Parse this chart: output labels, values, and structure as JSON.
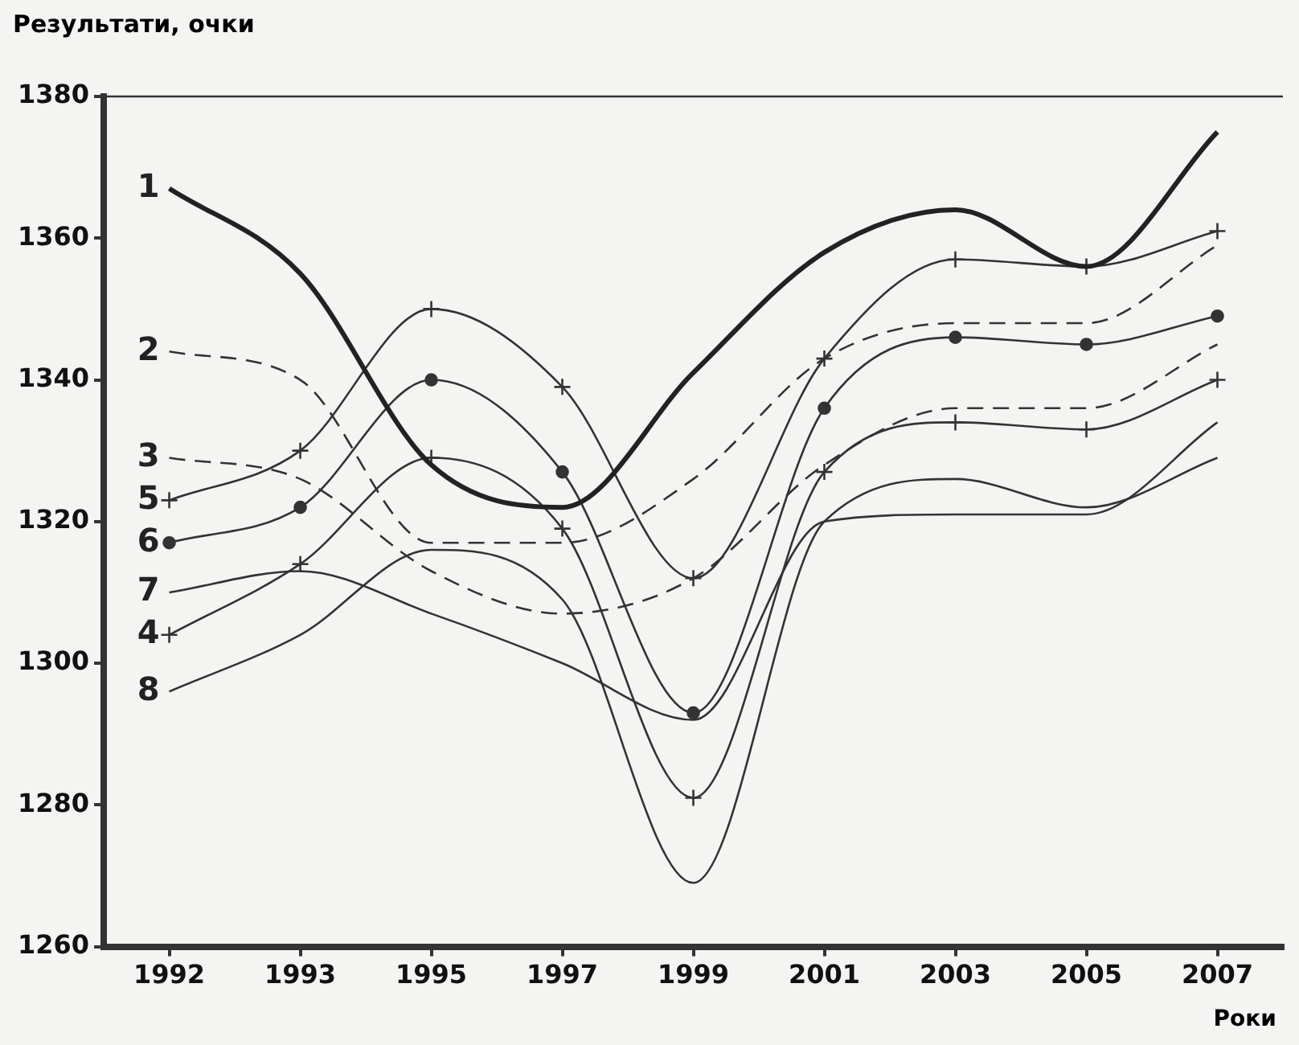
{
  "chart_data": {
    "type": "line",
    "ylabel": "Результати, очки",
    "xlabel": "Роки",
    "categories": [
      "1992",
      "1993",
      "1995",
      "1997",
      "1999",
      "2001",
      "2003",
      "2005",
      "2007"
    ],
    "ylim": [
      1260,
      1380
    ],
    "yticks": [
      1260,
      1280,
      1300,
      1320,
      1340,
      1360,
      1380
    ],
    "grid": false,
    "legend": false,
    "series": [
      {
        "name": "1",
        "color": "#222222",
        "marker": "none",
        "line_style": "solid",
        "values": [
          1367,
          1355,
          1328,
          1322,
          1341,
          1358,
          1364,
          1356,
          1375
        ]
      },
      {
        "name": "2",
        "color": "#333333",
        "marker": "none",
        "line_style": "dashed",
        "values": [
          1344,
          1340,
          1317,
          1317,
          1326,
          1343,
          1348,
          1348,
          1359
        ]
      },
      {
        "name": "3",
        "color": "#333333",
        "marker": "none",
        "line_style": "dashed",
        "values": [
          1329,
          1326,
          1313,
          1307,
          1312,
          1328,
          1336,
          1336,
          1345
        ]
      },
      {
        "name": "4",
        "color": "#333333",
        "marker": "cross",
        "line_style": "solid",
        "values": [
          1304,
          1314,
          1329,
          1319,
          1281,
          1327,
          1334,
          1333,
          1340
        ]
      },
      {
        "name": "5",
        "color": "#333333",
        "marker": "cross",
        "line_style": "solid",
        "values": [
          1323,
          1330,
          1350,
          1339,
          1312,
          1343,
          1357,
          1356,
          1361
        ]
      },
      {
        "name": "6",
        "color": "#333333",
        "marker": "circle",
        "line_style": "solid",
        "values": [
          1317,
          1322,
          1340,
          1327,
          1293,
          1336,
          1346,
          1345,
          1349
        ]
      },
      {
        "name": "7",
        "color": "#333333",
        "marker": "none",
        "line_style": "solid",
        "values": [
          1310,
          1313,
          1307,
          1300,
          1292,
          1320,
          1321,
          1321,
          1334
        ]
      },
      {
        "name": "8",
        "color": "#333333",
        "marker": "none",
        "line_style": "solid",
        "values": [
          1296,
          1304,
          1316,
          1309,
          1269,
          1320,
          1326,
          1322,
          1329
        ]
      }
    ]
  }
}
